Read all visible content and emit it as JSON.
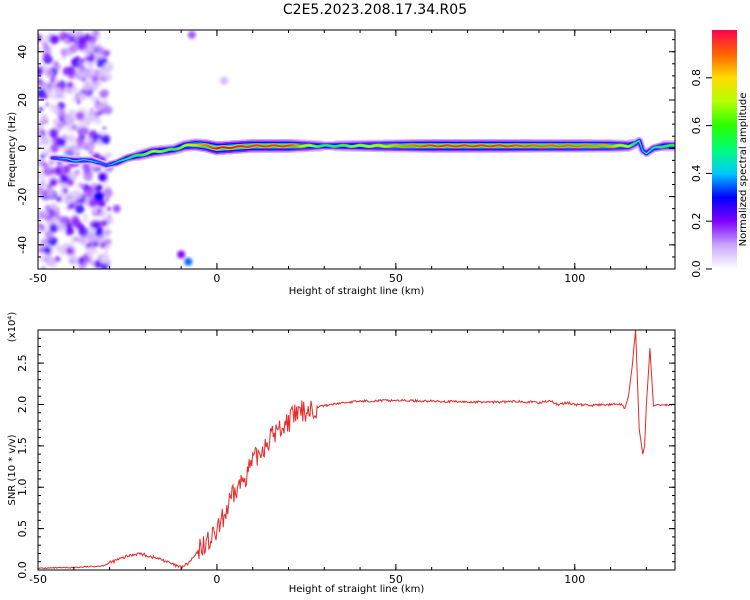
{
  "figure_title": "C2E5.2023.208.17.34.R05",
  "chart_data": [
    {
      "type": "heatmap",
      "title": "C2E5.2023.208.17.34.R05",
      "xlabel": "Height of straight line (km)",
      "ylabel": "Frequency (Hz)",
      "xlim": [
        -50,
        128
      ],
      "ylim": [
        -50,
        49
      ],
      "xticks": [
        -50,
        0,
        50,
        100
      ],
      "xtick_labels": [
        "-50",
        "0",
        "50",
        "100"
      ],
      "yticks": [
        -40,
        -20,
        0,
        20,
        40
      ],
      "ytick_labels": [
        "-40",
        "-20",
        "0",
        "20",
        "40"
      ],
      "colorbar": {
        "label": "Normalized spectral amplitude",
        "range": [
          0,
          1
        ],
        "ticks": [
          0.0,
          0.2,
          0.4,
          0.6,
          0.8
        ],
        "tick_labels": [
          "0.0",
          "0.2",
          "0.4",
          "0.6",
          "0.8"
        ],
        "colormap": "rainbow",
        "colors": [
          "#ffffff",
          "#c9a6ff",
          "#7d00ff",
          "#0000ff",
          "#00c8ff",
          "#00ff78",
          "#28ff00",
          "#b4ff00",
          "#ffdc00",
          "#ff6400",
          "#ff0050"
        ]
      },
      "ridge": {
        "description_free": true,
        "x": [
          -45,
          -40,
          -35,
          -31,
          -28,
          -25,
          -22,
          -18,
          -15,
          -12,
          -9,
          -6,
          -3,
          0,
          10,
          20,
          30,
          40,
          50,
          60,
          70,
          80,
          90,
          100,
          110,
          115,
          117,
          118,
          119,
          120,
          122,
          125,
          128
        ],
        "frequency": [
          -4,
          -5,
          -5,
          -7,
          -6,
          -4,
          -3,
          -1.5,
          -1,
          -0.5,
          1,
          1.5,
          1,
          0,
          1,
          1,
          1,
          1,
          1,
          1,
          1,
          1,
          1,
          1,
          1,
          1,
          2,
          3,
          -1,
          -2,
          0,
          1,
          1
        ],
        "amplitude": [
          0.35,
          0.45,
          0.4,
          0.35,
          0.45,
          0.5,
          0.6,
          0.7,
          0.65,
          0.6,
          0.7,
          0.8,
          0.9,
          1.0,
          0.95,
          0.95,
          0.55,
          0.7,
          0.85,
          0.95,
          0.95,
          0.95,
          0.9,
          0.9,
          0.85,
          0.7,
          0.5,
          0.45,
          0.4,
          0.45,
          0.5,
          0.6,
          0.6
        ]
      },
      "grid": false
    },
    {
      "type": "line",
      "xlabel": "Height of straight line (km)",
      "ylabel": "SNR (10 * v/v)",
      "y_multiplier_label": "(x10⁴)",
      "xlim": [
        -50,
        128
      ],
      "ylim": [
        0,
        2.9
      ],
      "xticks": [
        -50,
        0,
        50,
        100
      ],
      "xtick_labels": [
        "-50",
        "0",
        "50",
        "100"
      ],
      "yticks": [
        0.0,
        0.5,
        1.0,
        1.5,
        2.0,
        2.5
      ],
      "ytick_labels": [
        "0.0",
        "0.5",
        "1.0",
        "1.5",
        "2.0",
        "2.5"
      ],
      "series": [
        {
          "color": "#e8282a",
          "x": [
            -50,
            -40,
            -32,
            -28,
            -24,
            -22,
            -20,
            -15,
            -12,
            -10,
            -8,
            -6,
            -4,
            -2,
            0,
            2,
            4,
            6,
            8,
            10,
            12,
            14,
            16,
            18,
            20,
            22,
            25,
            28,
            32,
            35,
            40,
            50,
            60,
            70,
            80,
            85,
            90,
            93,
            95,
            98,
            100,
            105,
            110,
            113,
            114,
            115,
            116,
            117,
            118,
            119,
            119.5,
            120,
            121,
            122,
            123,
            125,
            128
          ],
          "values": [
            0.02,
            0.03,
            0.05,
            0.12,
            0.18,
            0.2,
            0.18,
            0.12,
            0.06,
            0.03,
            0.08,
            0.18,
            0.3,
            0.35,
            0.45,
            0.65,
            0.85,
            1.0,
            1.15,
            1.3,
            1.42,
            1.55,
            1.65,
            1.72,
            1.8,
            1.88,
            1.93,
            1.97,
            2.0,
            2.02,
            2.04,
            2.05,
            2.04,
            2.03,
            2.03,
            2.04,
            2.02,
            2.05,
            2.0,
            2.02,
            2.0,
            1.99,
            2.0,
            2.0,
            1.95,
            2.1,
            2.45,
            2.9,
            1.7,
            1.4,
            1.5,
            2.0,
            2.68,
            1.98,
            2.0,
            1.99,
            2.0
          ]
        }
      ],
      "grid": false
    }
  ]
}
